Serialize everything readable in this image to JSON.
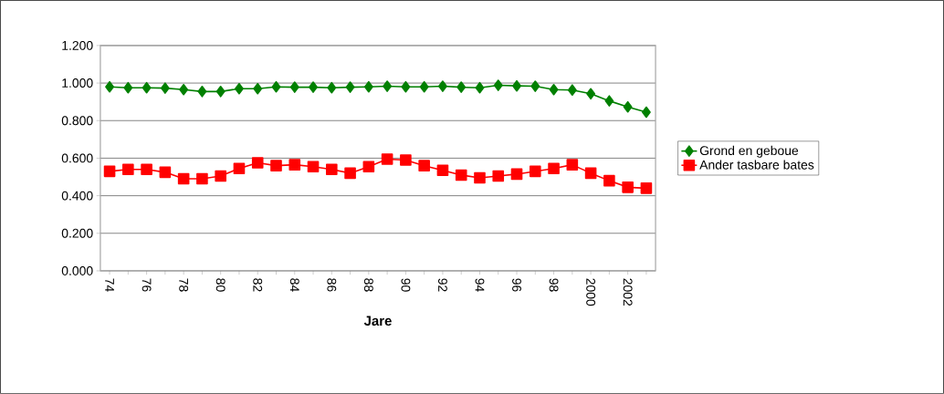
{
  "chart_data": {
    "type": "line",
    "xlabel": "Jare",
    "categories": [
      "74",
      null,
      "76",
      null,
      "78",
      null,
      "80",
      null,
      "82",
      null,
      "84",
      null,
      "86",
      null,
      "88",
      null,
      "90",
      null,
      "92",
      null,
      "94",
      null,
      "96",
      null,
      "98",
      null,
      "2000",
      null,
      "2002",
      null
    ],
    "series": [
      {
        "name": "Grond en geboue",
        "color": "#008000",
        "marker": "diamond",
        "values": [
          0.98,
          0.975,
          0.975,
          0.973,
          0.965,
          0.955,
          0.955,
          0.97,
          0.97,
          0.98,
          0.978,
          0.978,
          0.975,
          0.978,
          0.98,
          0.983,
          0.98,
          0.98,
          0.983,
          0.978,
          0.975,
          0.988,
          0.985,
          0.983,
          0.965,
          0.963,
          0.943,
          0.905,
          0.873,
          0.845
        ]
      },
      {
        "name": "Ander tasbare bates",
        "color": "#ff0000",
        "marker": "square",
        "values": [
          0.53,
          0.54,
          0.54,
          0.525,
          0.49,
          0.49,
          0.505,
          0.545,
          0.575,
          0.56,
          0.565,
          0.555,
          0.54,
          0.52,
          0.555,
          0.595,
          0.59,
          0.56,
          0.535,
          0.51,
          0.495,
          0.505,
          0.515,
          0.53,
          0.545,
          0.565,
          0.52,
          0.48,
          0.445,
          0.44
        ]
      }
    ],
    "ylim": [
      0,
      1.2
    ],
    "yticks": [
      {
        "value": 0,
        "label": "0.000"
      },
      {
        "value": 0.2,
        "label": "0.200"
      },
      {
        "value": 0.4,
        "label": "0.400"
      },
      {
        "value": 0.6,
        "label": "0.600"
      },
      {
        "value": 0.8,
        "label": "0.800"
      },
      {
        "value": 1.0,
        "label": "1.000"
      },
      {
        "value": 1.2,
        "label": "1.200"
      }
    ],
    "grid": "y",
    "legend": "right",
    "line_style": "solid"
  }
}
